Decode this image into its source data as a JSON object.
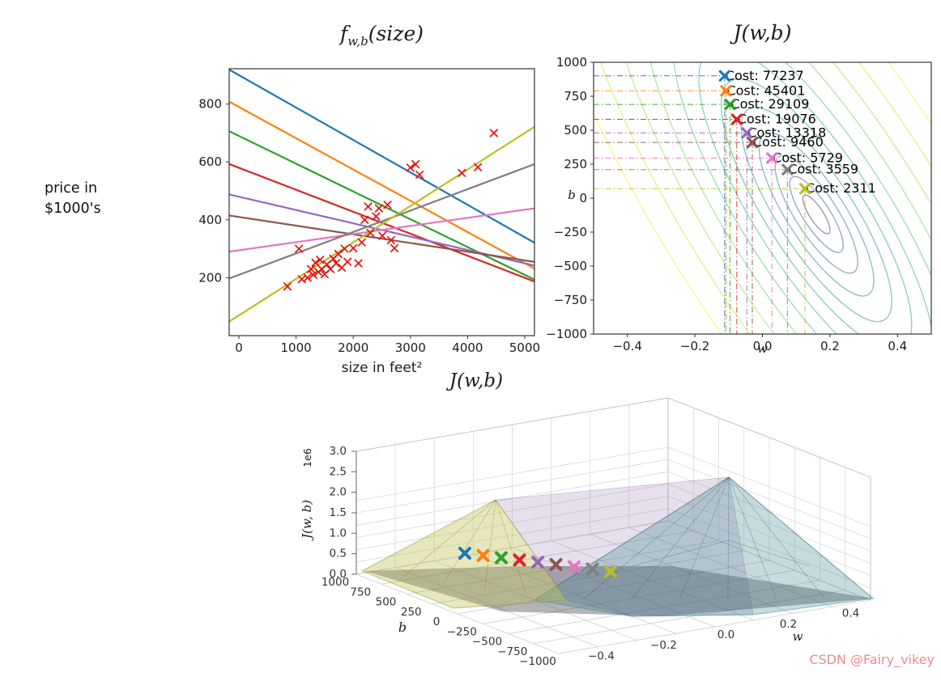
{
  "watermark": {
    "text": "CSDN @Fairy_vikey",
    "color": "#f0898f"
  },
  "price_caption": {
    "line1": "price in",
    "line2": "$1000's"
  },
  "chart_data": [
    {
      "id": "models_plot",
      "type": "scatter+lines",
      "title": {
        "prefix": "f",
        "sub": "w,b",
        "suffix": "(size)"
      },
      "xlabel": "size in feet²",
      "ylabel_external": "price in $1000's",
      "xlim": [
        -170,
        5170
      ],
      "ylim": [
        0,
        922
      ],
      "xticks": [
        {
          "v": 0,
          "label": "0"
        },
        {
          "v": 1000,
          "label": "1000"
        },
        {
          "v": 2000,
          "label": "2000"
        },
        {
          "v": 3000,
          "label": "3000"
        },
        {
          "v": 4000,
          "label": "4000"
        },
        {
          "v": 5000,
          "label": "5000"
        }
      ],
      "yticks": [
        {
          "v": 200,
          "label": "200"
        },
        {
          "v": 400,
          "label": "400"
        },
        {
          "v": 600,
          "label": "600"
        },
        {
          "v": 800,
          "label": "800"
        }
      ],
      "scatter": {
        "marker": "x",
        "color": "#e81010",
        "points": [
          [
            850,
            170
          ],
          [
            1050,
            300
          ],
          [
            1100,
            195
          ],
          [
            1200,
            200
          ],
          [
            1260,
            230
          ],
          [
            1300,
            210
          ],
          [
            1340,
            252
          ],
          [
            1390,
            220
          ],
          [
            1420,
            262
          ],
          [
            1450,
            230
          ],
          [
            1500,
            212
          ],
          [
            1540,
            246
          ],
          [
            1600,
            230
          ],
          [
            1650,
            266
          ],
          [
            1700,
            250
          ],
          [
            1740,
            282
          ],
          [
            1800,
            235
          ],
          [
            1850,
            300
          ],
          [
            1900,
            255
          ],
          [
            2000,
            302
          ],
          [
            2090,
            250
          ],
          [
            2150,
            322
          ],
          [
            2200,
            400
          ],
          [
            2260,
            446
          ],
          [
            2300,
            355
          ],
          [
            2400,
            412
          ],
          [
            2450,
            440
          ],
          [
            2510,
            345
          ],
          [
            2600,
            452
          ],
          [
            2660,
            330
          ],
          [
            2720,
            302
          ],
          [
            3000,
            580
          ],
          [
            3090,
            592
          ],
          [
            3160,
            556
          ],
          [
            3900,
            562
          ],
          [
            4180,
            582
          ],
          [
            4460,
            700
          ]
        ]
      },
      "lines": [
        {
          "color": "#1f77b4",
          "w": -0.112,
          "b": 900
        },
        {
          "color": "#ff7f0e",
          "w": -0.108,
          "b": 790
        },
        {
          "color": "#2ca02c",
          "w": -0.096,
          "b": 690
        },
        {
          "color": "#d62728",
          "w": -0.076,
          "b": 580
        },
        {
          "color": "#9467bd",
          "w": -0.046,
          "b": 480
        },
        {
          "color": "#8c564b",
          "w": -0.03,
          "b": 410
        },
        {
          "color": "#e377c2",
          "w": 0.028,
          "b": 295
        },
        {
          "color": "#7f7f7f",
          "w": 0.074,
          "b": 210
        },
        {
          "color": "#bcbd22",
          "w": 0.126,
          "b": 70
        }
      ]
    },
    {
      "id": "cost_contour",
      "type": "contour",
      "title": "J(w,b)",
      "xlabel": "w",
      "ylabel": "b",
      "xlim": [
        -0.5,
        0.5
      ],
      "ylim": [
        -1000,
        1000
      ],
      "xticks": [
        {
          "v": -0.4,
          "label": "−0.4"
        },
        {
          "v": -0.2,
          "label": "−0.2"
        },
        {
          "v": 0,
          "label": "0.0"
        },
        {
          "v": 0.2,
          "label": "0.2"
        },
        {
          "v": 0.4,
          "label": "0.4"
        }
      ],
      "yticks": [
        {
          "v": 1000,
          "label": "1000"
        },
        {
          "v": 750,
          "label": "750"
        },
        {
          "v": 500,
          "label": "500"
        },
        {
          "v": 250,
          "label": "250"
        },
        {
          "v": 0,
          "label": "0"
        },
        {
          "v": -250,
          "label": "−250"
        },
        {
          "v": -500,
          "label": "−500"
        },
        {
          "v": -750,
          "label": "−750"
        },
        {
          "v": -1000,
          "label": "−1000"
        }
      ],
      "center": {
        "w": 0.16,
        "b": -120
      },
      "tilt_deg": 57,
      "contour_radii": [
        600,
        505,
        425,
        355,
        295,
        242,
        196,
        155,
        118,
        85,
        55,
        28
      ],
      "contour_colors": [
        "#fde725",
        "#d0e11c",
        "#a0da39",
        "#73d056",
        "#4ac16d",
        "#2db27d",
        "#1fa187",
        "#21918c",
        "#277f8e",
        "#2e6e8e",
        "#365c8d",
        "#46327e"
      ],
      "points": [
        {
          "color": "#1f77b4",
          "w": -0.112,
          "b": 900,
          "label": "Cost: 77237"
        },
        {
          "color": "#ff7f0e",
          "w": -0.108,
          "b": 790,
          "label": "Cost: 45401"
        },
        {
          "color": "#2ca02c",
          "w": -0.096,
          "b": 690,
          "label": "Cost: 29109"
        },
        {
          "color": "#d62728",
          "w": -0.076,
          "b": 580,
          "label": "Cost: 19076"
        },
        {
          "color": "#9467bd",
          "w": -0.046,
          "b": 480,
          "label": "Cost: 13318"
        },
        {
          "color": "#8c564b",
          "w": -0.03,
          "b": 410,
          "label": "Cost: 9460"
        },
        {
          "color": "#e377c2",
          "w": 0.028,
          "b": 295,
          "label": "Cost: 5729"
        },
        {
          "color": "#7f7f7f",
          "w": 0.074,
          "b": 210,
          "label": "Cost: 3559"
        },
        {
          "color": "#bcbd22",
          "w": 0.126,
          "b": 70,
          "label": "Cost: 2311"
        }
      ]
    },
    {
      "id": "cost_surface",
      "type": "surface_3d",
      "title": "J(w,b)",
      "xlabel": "w",
      "ylabel": "b",
      "zlabel": "J(w, b)",
      "z_offset_label": "1e6",
      "zticks": [
        {
          "v": 3.0,
          "label": "3.0"
        },
        {
          "v": 2.5,
          "label": "2.5"
        },
        {
          "v": 2.0,
          "label": "2.0"
        },
        {
          "v": 1.5,
          "label": "1.5"
        },
        {
          "v": 1.0,
          "label": "1.0"
        },
        {
          "v": 0.5,
          "label": "0.5"
        },
        {
          "v": 0.0,
          "label": "0.0"
        }
      ],
      "yticks": [
        "1000",
        "750",
        "500",
        "250",
        "0",
        "−250",
        "−500",
        "−750",
        "−1000"
      ],
      "xticks": [
        {
          "v": -0.4,
          "label": "−0.4"
        },
        {
          "v": -0.2,
          "label": "−0.2"
        },
        {
          "v": 0,
          "label": "0.0"
        },
        {
          "v": 0.2,
          "label": "0.2"
        },
        {
          "v": 0.4,
          "label": "0.4"
        }
      ]
    }
  ]
}
